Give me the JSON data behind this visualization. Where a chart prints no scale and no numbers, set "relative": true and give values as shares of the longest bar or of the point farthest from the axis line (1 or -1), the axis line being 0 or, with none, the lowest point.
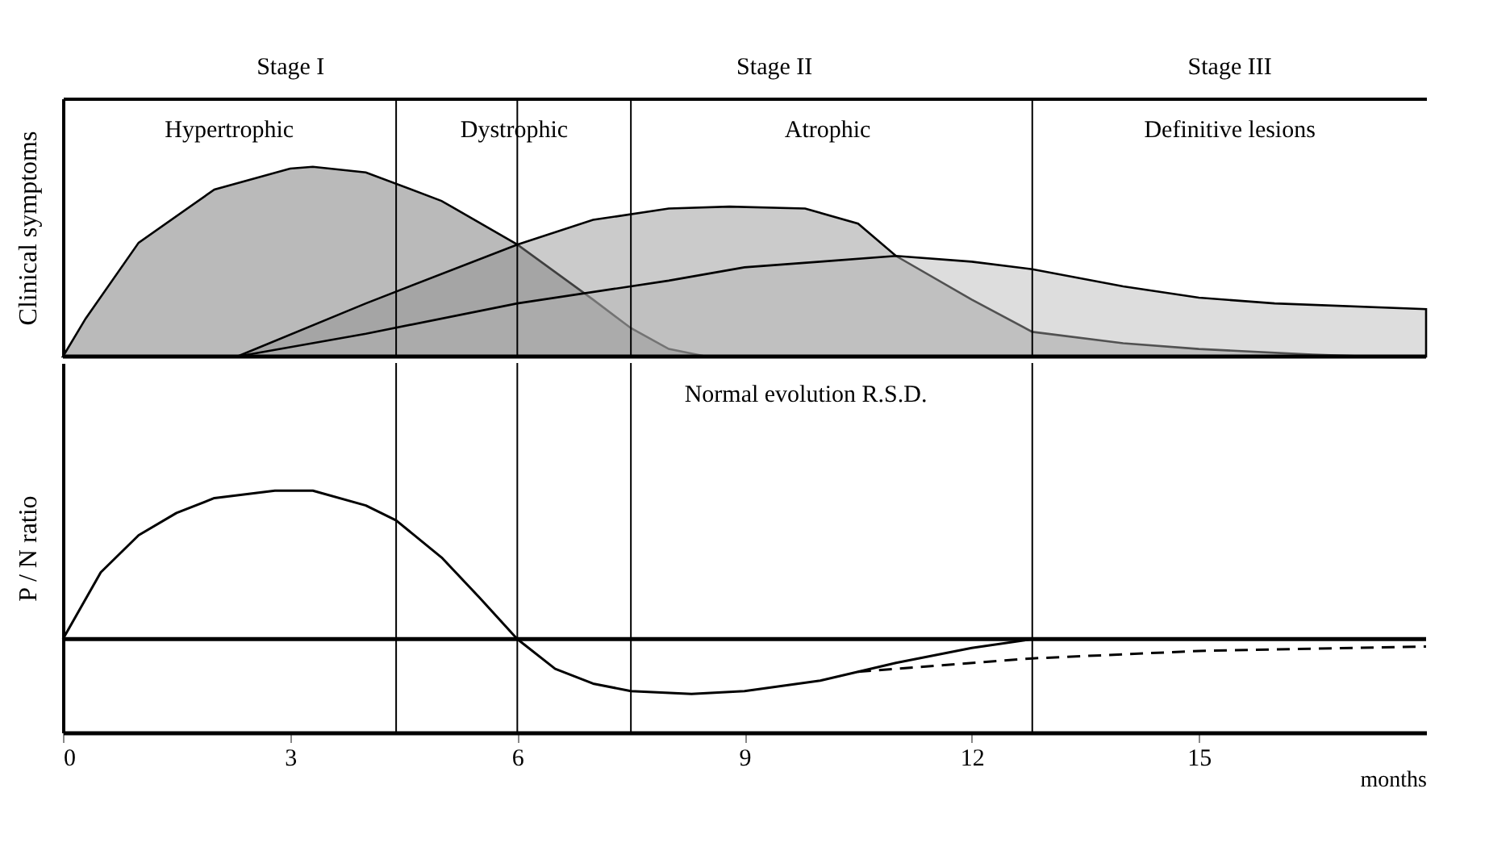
{
  "chart_data": [
    {
      "type": "area",
      "relative": true,
      "ylabel": "Clinical symptoms",
      "xlim": [
        0,
        18
      ],
      "tick_labels": false,
      "grid": false,
      "series": [
        {
          "color": "#666666",
          "x": [
            0,
            0.3,
            1,
            2,
            3,
            3.3,
            4,
            5,
            6,
            7,
            7.5,
            8,
            8.5
          ],
          "values": [
            0,
            0.2,
            0.6,
            0.88,
            0.99,
            1,
            0.97,
            0.82,
            0.59,
            0.3,
            0.15,
            0.04,
            0
          ]
        },
        {
          "color": "#8c8c8c",
          "x": [
            2.3,
            4,
            6,
            7,
            8,
            8.8,
            9.8,
            10.5,
            11,
            12,
            12.8,
            14,
            15,
            16.5,
            17.3
          ],
          "values": [
            0,
            0.28,
            0.59,
            0.72,
            0.78,
            0.79,
            0.78,
            0.7,
            0.53,
            0.3,
            0.13,
            0.07,
            0.04,
            0.01,
            0
          ]
        },
        {
          "color": "#b3b3b3",
          "x": [
            2.3,
            4,
            6,
            8,
            9,
            10,
            11,
            12,
            12.8,
            14,
            15,
            16,
            18
          ],
          "values": [
            0,
            0.12,
            0.28,
            0.4,
            0.47,
            0.5,
            0.53,
            0.5,
            0.46,
            0.37,
            0.31,
            0.28,
            0.25
          ]
        }
      ],
      "ref_lines": [
        {
          "axis": "x",
          "value": 4.4
        },
        {
          "axis": "x",
          "value": 6
        },
        {
          "axis": "x",
          "value": 7.5
        },
        {
          "axis": "x",
          "value": 12.8
        }
      ],
      "annotations": [
        "Stage I",
        "Stage II",
        "Stage III",
        "Hypertrophic",
        "Dystrophic",
        "Atrophic",
        "Definitive lesions"
      ]
    },
    {
      "type": "line",
      "relative": true,
      "ylabel": "P / N ratio",
      "xlabel": "months",
      "xlim": [
        0,
        18
      ],
      "xticks": [
        0,
        3,
        6,
        9,
        12,
        15
      ],
      "tick_labels": "x",
      "grid": false,
      "series": [
        {
          "color": "#000000",
          "line_style": "solid",
          "x": [
            0,
            0.5,
            1,
            1.5,
            2,
            2.8,
            3.3,
            4,
            4.4,
            5,
            5.5,
            6,
            6.5,
            7,
            7.5,
            8.3,
            9,
            10,
            10.5,
            11,
            12,
            12.8
          ],
          "values": [
            0,
            0.45,
            0.7,
            0.85,
            0.95,
            1,
            1,
            0.9,
            0.8,
            0.55,
            0.28,
            0,
            -0.2,
            -0.3,
            -0.35,
            -0.37,
            -0.35,
            -0.28,
            -0.22,
            -0.16,
            -0.06,
            0
          ]
        },
        {
          "color": "#000000",
          "line_style": "dashed",
          "x": [
            10.5,
            12.8,
            15,
            18
          ],
          "values": [
            -0.22,
            -0.13,
            -0.08,
            -0.05
          ]
        }
      ],
      "ref_lines": [
        {
          "axis": "x",
          "value": 4.4
        },
        {
          "axis": "x",
          "value": 6
        },
        {
          "axis": "x",
          "value": 7.5
        },
        {
          "axis": "x",
          "value": 12.8
        }
      ],
      "annotations": [
        "Normal evolution R.S.D."
      ]
    }
  ]
}
